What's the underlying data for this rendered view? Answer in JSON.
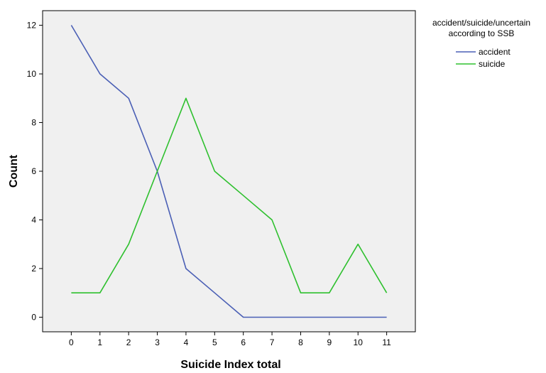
{
  "chart_data": {
    "type": "line",
    "xlabel": "Suicide Index total",
    "ylabel": "Count",
    "x": [
      0,
      1,
      2,
      3,
      4,
      5,
      6,
      7,
      8,
      9,
      10,
      11
    ],
    "xlim": [
      -1,
      12
    ],
    "ylim": [
      -0.6,
      12.6
    ],
    "yticks": [
      0,
      2,
      4,
      6,
      8,
      10,
      12
    ],
    "grid": false,
    "background": "#f0f0f0",
    "legend": {
      "title_lines": [
        "accident/suicide/uncertain",
        "according to SSB"
      ],
      "position": "right"
    },
    "series": [
      {
        "name": "accident",
        "color": "#4a5fb5",
        "values": [
          12,
          10,
          9,
          6,
          2,
          1,
          0,
          0,
          0,
          0,
          0,
          0
        ]
      },
      {
        "name": "suicide",
        "color": "#2ec02e",
        "values": [
          1,
          1,
          3,
          6,
          9,
          6,
          5,
          4,
          1,
          1,
          3,
          1
        ]
      }
    ]
  }
}
